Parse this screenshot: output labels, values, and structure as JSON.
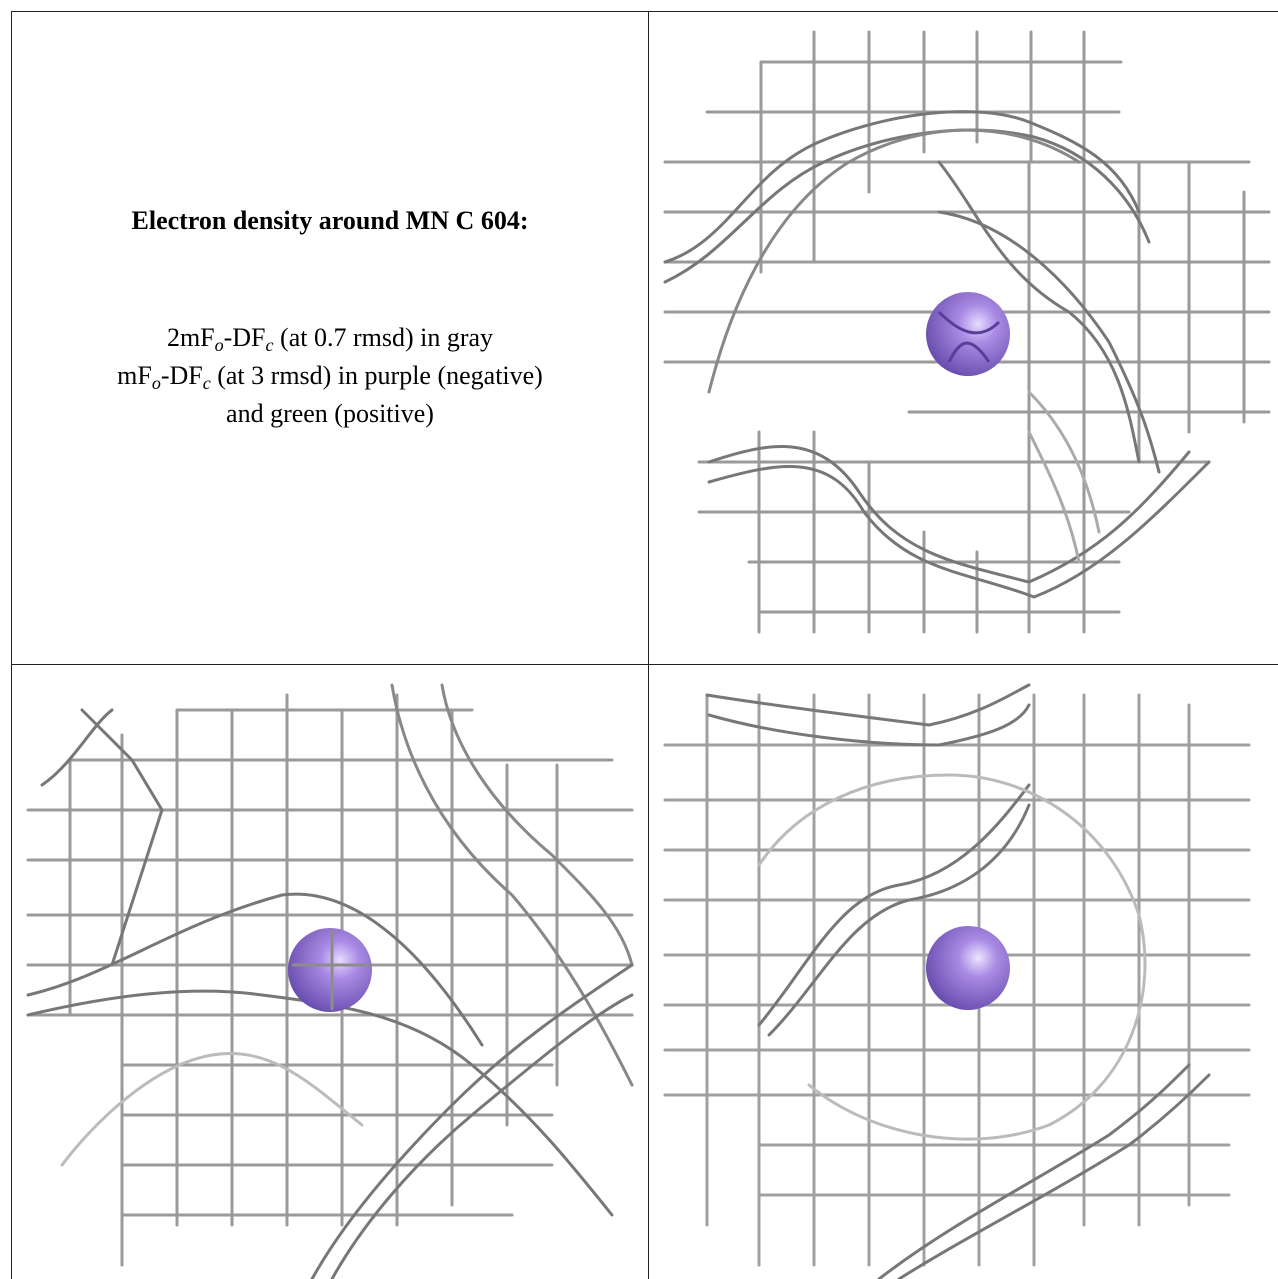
{
  "title": "Electron density around MN C 604:",
  "legend": {
    "line1_pre": "2mF",
    "line1_sub1": "o",
    "line1_mid": "-DF",
    "line1_sub2": "c",
    "line1_post": " (at 0.7 rmsd) in gray",
    "line2_pre": "mF",
    "line2_sub1": "o",
    "line2_mid": "-DF",
    "line2_sub2": "c",
    "line2_post": " (at 3 rmsd) in purple (negative)",
    "line3": "and green (positive)"
  },
  "colors": {
    "density_gray": "#8c8c8c",
    "atom_purple": "#9b7fd6",
    "border": "#222222"
  },
  "panels": [
    {
      "name": "view-top-right",
      "icon": "mn-atom-sphere-icon"
    },
    {
      "name": "view-bottom-left",
      "icon": "mn-atom-sphere-icon"
    },
    {
      "name": "view-bottom-right",
      "icon": "mn-atom-sphere-icon"
    }
  ]
}
